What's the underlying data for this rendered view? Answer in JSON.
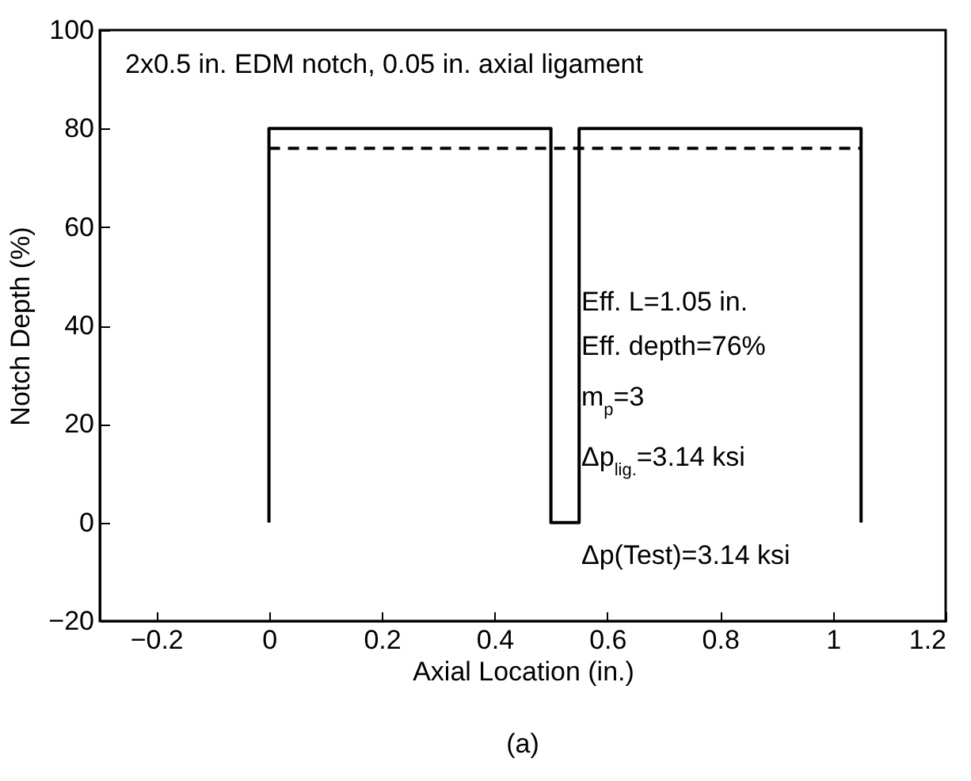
{
  "chart_data": {
    "type": "line",
    "xlabel": "Axial Location (in.)",
    "ylabel": "Notch Depth (%)",
    "xlim": [
      -0.3,
      1.2
    ],
    "xticks": [
      -0.2,
      0,
      0.2,
      0.4,
      0.6,
      0.8,
      1,
      1.2
    ],
    "ylim": [
      -20,
      100
    ],
    "yticks": [
      -20,
      0,
      20,
      40,
      60,
      80,
      100
    ],
    "series": [
      {
        "color": "#000000",
        "line_style": "solid",
        "x": [
          0,
          0,
          0.5,
          0.5,
          0.55,
          0.55,
          1.05,
          1.05
        ],
        "values": [
          0,
          80,
          80,
          0,
          0,
          80,
          80,
          0
        ]
      },
      {
        "color": "#000000",
        "line_style": "dashed",
        "x": [
          0,
          1.05
        ],
        "values": [
          76,
          76
        ]
      }
    ],
    "annotations": [
      "2x0.5 in. EDM notch, 0.05 in. axial ligament",
      "Eff. L=1.05 in.",
      "Eff. depth=76%",
      "m$_{p}$=3",
      "Δp$_{lig.}$=3.14 ksi",
      "Δp(Test)=3.14 ksi",
      "(a)"
    ],
    "grid": false
  }
}
